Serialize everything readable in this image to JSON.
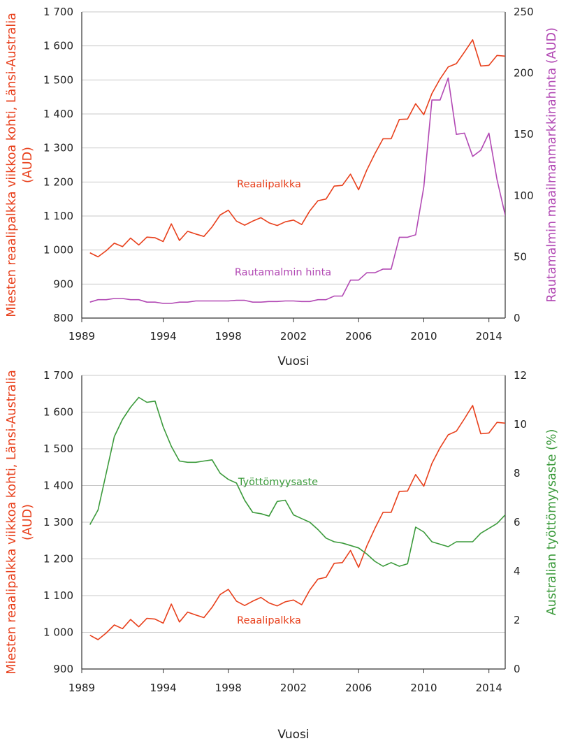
{
  "chart_data": [
    {
      "type": "line",
      "xlabel": "Vuosi",
      "ylabel": "Miesten reaalipalkka viikkoa kohti, Länsi-Australia (AUD)",
      "ylabel_right": "Rautamalmin maailmanmarkkinahinta (AUD)",
      "xlim": [
        1989,
        2015
      ],
      "ylim": [
        800,
        1700
      ],
      "ylim_right": [
        0,
        250
      ],
      "x_ticks": [
        "1989",
        "1994",
        "1998",
        "2002",
        "2006",
        "2010",
        "2014"
      ],
      "y_ticks": [
        "800",
        "900",
        "1 000",
        "1 100",
        "1 200",
        "1 300",
        "1 400",
        "1 500",
        "1 600",
        "1 700"
      ],
      "y_ticks_right": [
        "0",
        "50",
        "100",
        "150",
        "200",
        "250"
      ],
      "grid": true,
      "series": [
        {
          "name": "Reaalipalkka",
          "axis": "left",
          "color": "#e8401c",
          "x": [
            1989.5,
            1990,
            1990.5,
            1991,
            1991.5,
            1992,
            1992.5,
            1993,
            1993.5,
            1994,
            1994.5,
            1995,
            1995.5,
            1996,
            1996.5,
            1997,
            1997.5,
            1998,
            1998.5,
            1999,
            1999.5,
            2000,
            2000.5,
            2001,
            2001.5,
            2002,
            2002.5,
            2003,
            2003.5,
            2004,
            2004.5,
            2005,
            2005.5,
            2006,
            2006.5,
            2007,
            2007.5,
            2008,
            2008.5,
            2009,
            2009.5,
            2010,
            2010.5,
            2011,
            2011.5,
            2012,
            2012.5,
            2013,
            2013.5,
            2014,
            2014.5,
            2015,
            2015.5
          ],
          "values": [
            992,
            980,
            998,
            1020,
            1010,
            1035,
            1015,
            1038,
            1036,
            1025,
            1077,
            1028,
            1055,
            1047,
            1040,
            1068,
            1103,
            1117,
            1085,
            1073,
            1085,
            1095,
            1080,
            1072,
            1083,
            1088,
            1075,
            1115,
            1145,
            1150,
            1188,
            1190,
            1223,
            1177,
            1235,
            1283,
            1327,
            1327,
            1384,
            1385,
            1430,
            1398,
            1460,
            1503,
            1538,
            1548,
            1582,
            1618,
            1541,
            1543,
            1572,
            1570,
            1555
          ]
        },
        {
          "name": "Rautamalmin hinta",
          "axis": "right",
          "color": "#b249b4",
          "x": [
            1989.5,
            1990,
            1990.5,
            1991,
            1991.5,
            1992,
            1992.5,
            1993,
            1993.5,
            1994,
            1994.5,
            1995,
            1995.5,
            1996,
            1996.5,
            1997,
            1997.5,
            1998,
            1998.5,
            1999,
            1999.5,
            2000,
            2000.5,
            2001,
            2001.5,
            2002,
            2002.5,
            2003,
            2003.5,
            2004,
            2004.5,
            2005,
            2005.5,
            2006,
            2006.5,
            2007,
            2007.5,
            2008,
            2008.5,
            2009,
            2009.5,
            2010,
            2010.5,
            2011,
            2011.5,
            2012,
            2012.5,
            2013,
            2013.5,
            2014,
            2014.5,
            2015,
            2015.5
          ],
          "values": [
            13,
            15,
            15,
            16,
            16,
            15,
            15,
            13,
            13,
            12,
            12,
            13,
            13,
            14,
            14,
            14,
            14,
            14,
            14.5,
            14.5,
            13,
            13,
            13.5,
            13.5,
            14,
            14,
            13.5,
            13.5,
            15,
            15,
            18,
            18,
            31,
            31,
            37,
            37,
            40,
            40,
            66,
            66,
            68,
            107,
            178,
            178,
            196,
            150,
            151,
            132,
            137,
            151,
            113,
            84,
            66
          ]
        }
      ]
    },
    {
      "type": "line",
      "xlabel": "Vuosi",
      "ylabel": "Miesten reaalipalkka viikkoa kohti, Länsi-Australia (AUD)",
      "ylabel_right": "Australian työttömyysaste (%)",
      "xlim": [
        1989,
        2015
      ],
      "ylim": [
        900,
        1700
      ],
      "ylim_right": [
        0,
        12
      ],
      "x_ticks": [
        "1989",
        "1994",
        "1998",
        "2002",
        "2006",
        "2010",
        "2014"
      ],
      "y_ticks": [
        "900",
        "1 000",
        "1 100",
        "1 200",
        "1 300",
        "1 400",
        "1 500",
        "1 600",
        "1 700"
      ],
      "y_ticks_right": [
        "0",
        "2",
        "4",
        "6",
        "8",
        "10",
        "12"
      ],
      "grid": true,
      "series": [
        {
          "name": "Reaalipalkka",
          "axis": "left",
          "color": "#e8401c",
          "x": [
            1989.5,
            1990,
            1990.5,
            1991,
            1991.5,
            1992,
            1992.5,
            1993,
            1993.5,
            1994,
            1994.5,
            1995,
            1995.5,
            1996,
            1996.5,
            1997,
            1997.5,
            1998,
            1998.5,
            1999,
            1999.5,
            2000,
            2000.5,
            2001,
            2001.5,
            2002,
            2002.5,
            2003,
            2003.5,
            2004,
            2004.5,
            2005,
            2005.5,
            2006,
            2006.5,
            2007,
            2007.5,
            2008,
            2008.5,
            2009,
            2009.5,
            2010,
            2010.5,
            2011,
            2011.5,
            2012,
            2012.5,
            2013,
            2013.5,
            2014,
            2014.5,
            2015,
            2015.5
          ],
          "values": [
            992,
            980,
            998,
            1020,
            1010,
            1035,
            1015,
            1038,
            1036,
            1025,
            1077,
            1028,
            1055,
            1047,
            1040,
            1068,
            1103,
            1117,
            1085,
            1073,
            1085,
            1095,
            1080,
            1072,
            1083,
            1088,
            1075,
            1115,
            1145,
            1150,
            1188,
            1190,
            1223,
            1177,
            1235,
            1283,
            1327,
            1327,
            1384,
            1385,
            1430,
            1398,
            1460,
            1503,
            1538,
            1548,
            1582,
            1618,
            1541,
            1543,
            1572,
            1570,
            1555
          ]
        },
        {
          "name": "Työttömyysaste",
          "axis": "right",
          "color": "#3b9a3b",
          "x": [
            1989.5,
            1990,
            1990.5,
            1991,
            1991.5,
            1992,
            1992.5,
            1993,
            1993.5,
            1994,
            1994.5,
            1995,
            1995.5,
            1996,
            1996.5,
            1997,
            1997.5,
            1998,
            1998.5,
            1999,
            1999.5,
            2000,
            2000.5,
            2001,
            2001.5,
            2002,
            2002.5,
            2003,
            2003.5,
            2004,
            2004.5,
            2005,
            2005.5,
            2006,
            2006.5,
            2007,
            2007.5,
            2008,
            2008.5,
            2009,
            2009.5,
            2010,
            2010.5,
            2011,
            2011.5,
            2012,
            2012.5,
            2013,
            2013.5,
            2014,
            2014.5,
            2015,
            2015.5
          ],
          "values": [
            5.9,
            6.5,
            8.0,
            9.5,
            10.2,
            10.7,
            11.1,
            10.9,
            10.95,
            9.9,
            9.1,
            8.5,
            8.45,
            8.45,
            8.5,
            8.55,
            8.0,
            7.75,
            7.6,
            6.9,
            6.4,
            6.35,
            6.25,
            6.85,
            6.9,
            6.3,
            6.15,
            6.0,
            5.7,
            5.35,
            5.2,
            5.15,
            5.05,
            4.95,
            4.7,
            4.4,
            4.2,
            4.35,
            4.2,
            4.3,
            5.8,
            5.6,
            5.2,
            5.1,
            5.0,
            5.2,
            5.2,
            5.2,
            5.55,
            5.75,
            5.95,
            6.3,
            5.95
          ]
        }
      ]
    }
  ]
}
